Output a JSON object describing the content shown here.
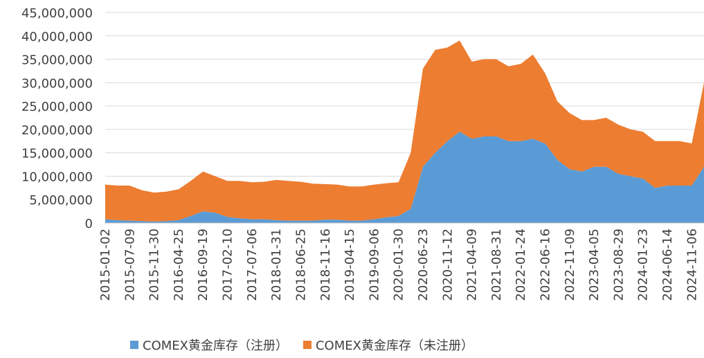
{
  "chart_data": {
    "type": "stacked_area",
    "categories": [
      "2015-01-02",
      null,
      "2015-07-09",
      null,
      "2015-11-30",
      null,
      "2016-04-25",
      null,
      "2016-09-19",
      null,
      "2017-02-10",
      null,
      "2017-07-06",
      null,
      "2018-01-31",
      null,
      "2018-06-25",
      null,
      "2018-11-16",
      null,
      "2019-04-15",
      null,
      "2019-09-06",
      null,
      "2020-01-30",
      null,
      "2020-06-23",
      null,
      "2020-11-12",
      null,
      "2021-04-09",
      null,
      "2021-08-31",
      null,
      "2022-01-24",
      null,
      "2022-06-16",
      null,
      "2022-11-09",
      null,
      "2023-04-05",
      null,
      "2023-08-29",
      null,
      "2024-01-23",
      null,
      "2024-06-14",
      null,
      "2024-11-06",
      null
    ],
    "series": [
      {
        "name": "COMEX黄金库存（注册）",
        "color": "#5b9bd5",
        "values": [
          800000,
          600000,
          500000,
          400000,
          300000,
          400000,
          600000,
          1500000,
          2500000,
          2200000,
          1300000,
          1000000,
          800000,
          800000,
          600000,
          500000,
          500000,
          500000,
          700000,
          700000,
          500000,
          500000,
          800000,
          1200000,
          1500000,
          3000000,
          12000000,
          15000000,
          17500000,
          19500000,
          18000000,
          18500000,
          18500000,
          17500000,
          17500000,
          18000000,
          17000000,
          13500000,
          11500000,
          11000000,
          12000000,
          12000000,
          10500000,
          10000000,
          9500000,
          7500000,
          8000000,
          8000000,
          8000000,
          12000000
        ]
      },
      {
        "name": "COMEX黄金库存（未注册）",
        "color": "#ed7d31",
        "values": [
          7400000,
          7400000,
          7500000,
          6600000,
          6200000,
          6300000,
          6600000,
          7500000,
          8500000,
          7800000,
          7700000,
          8000000,
          7900000,
          8000000,
          8600000,
          8500000,
          8300000,
          7900000,
          7600000,
          7500000,
          7300000,
          7300000,
          7400000,
          7300000,
          7200000,
          12000000,
          21000000,
          22000000,
          20000000,
          19500000,
          16500000,
          16500000,
          16500000,
          16000000,
          16500000,
          18000000,
          15000000,
          12500000,
          12000000,
          11000000,
          10000000,
          10500000,
          10500000,
          10000000,
          10000000,
          10000000,
          9500000,
          9500000,
          9000000,
          18000000
        ]
      }
    ],
    "ylim": [
      0,
      45000000
    ],
    "yticks": [
      0,
      {
        "value": 5000000,
        "label": "5,000,000"
      },
      {
        "value": 10000000,
        "label": "10,000,000"
      },
      {
        "value": 15000000,
        "label": "15,000,000"
      },
      {
        "value": 20000000,
        "label": "20,000,000"
      },
      {
        "value": 25000000,
        "label": "25,000,000"
      },
      {
        "value": 30000000,
        "label": "30,000,000"
      },
      {
        "value": 35000000,
        "label": "35,000,000"
      },
      {
        "value": 40000000,
        "label": "40,000,000"
      },
      {
        "value": 45000000,
        "label": "45,000,000"
      }
    ],
    "grid": true,
    "legend": "bottom"
  }
}
